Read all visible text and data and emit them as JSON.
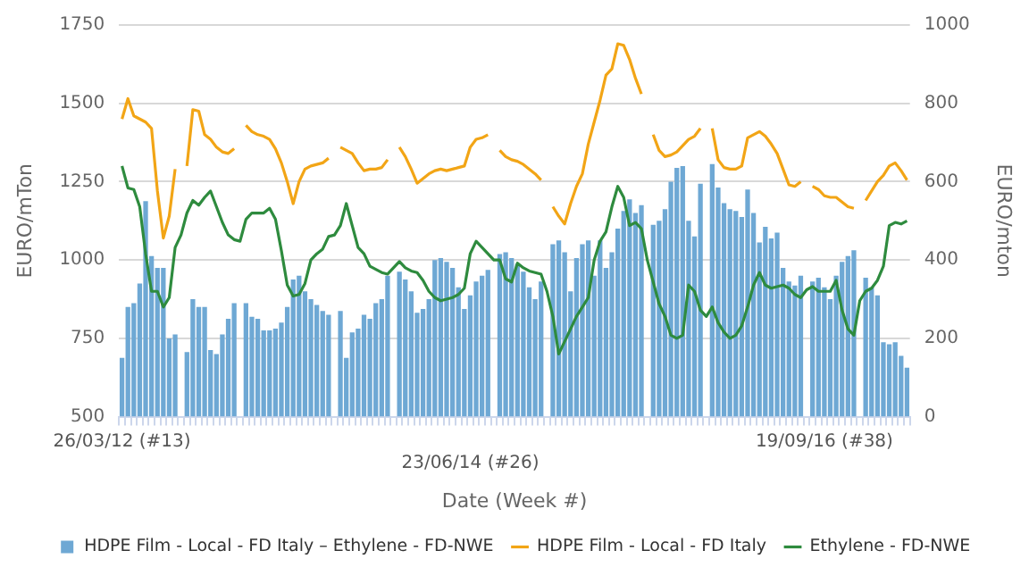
{
  "chart_data": {
    "type": "bar",
    "xlabel": "Date (Week #)",
    "ylabel": "EURO/mTon",
    "y2label": "EURO/mton",
    "categories": [
      "26/03/12 (#13)",
      null,
      null,
      null,
      null,
      null,
      null,
      null,
      null,
      null,
      null,
      null,
      null,
      null,
      null,
      null,
      null,
      null,
      null,
      null,
      null,
      null,
      null,
      null,
      null,
      null,
      null,
      null,
      null,
      null,
      null,
      null,
      null,
      null,
      null,
      null,
      null,
      null,
      null,
      null,
      null,
      null,
      null,
      null,
      null,
      null,
      null,
      null,
      null,
      null,
      null,
      null,
      null,
      null,
      null,
      null,
      null,
      null,
      null,
      "23/06/14 (#26)",
      null,
      null,
      null,
      null,
      null,
      null,
      null,
      null,
      null,
      null,
      null,
      null,
      null,
      null,
      null,
      null,
      null,
      null,
      null,
      null,
      null,
      null,
      null,
      null,
      null,
      null,
      null,
      null,
      null,
      null,
      null,
      null,
      null,
      null,
      null,
      null,
      null,
      null,
      null,
      null,
      null,
      null,
      null,
      null,
      null,
      null,
      null,
      null,
      null,
      null,
      null,
      null,
      null,
      null,
      null,
      null,
      null,
      null,
      null,
      "19/09/16 (#38)",
      null,
      null,
      null,
      null,
      null,
      null,
      null,
      null,
      null,
      null,
      null,
      null,
      null,
      null
    ],
    "series": [
      {
        "name": "HDPE Film - Local - FD Italy – Ethylene - FD-NWE",
        "axis": "y2",
        "color": "#6ea8d4",
        "values": [
          150,
          280,
          290,
          340,
          550,
          410,
          380,
          380,
          200,
          210,
          null,
          165,
          300,
          280,
          280,
          170,
          160,
          210,
          250,
          290,
          null,
          290,
          255,
          250,
          220,
          220,
          225,
          240,
          280,
          350,
          360,
          320,
          300,
          285,
          270,
          260,
          null,
          270,
          150,
          215,
          225,
          260,
          250,
          290,
          300,
          360,
          null,
          370,
          350,
          320,
          265,
          275,
          300,
          400,
          405,
          395,
          380,
          330,
          275,
          310,
          345,
          360,
          375,
          null,
          415,
          420,
          405,
          390,
          370,
          330,
          300,
          345,
          null,
          440,
          450,
          420,
          320,
          405,
          440,
          450,
          360,
          450,
          380,
          420,
          480,
          525,
          555,
          520,
          540,
          null,
          490,
          500,
          530,
          600,
          635,
          640,
          500,
          460,
          595,
          null,
          645,
          585,
          545,
          530,
          525,
          510,
          580,
          520,
          445,
          485,
          455,
          470,
          380,
          345,
          335,
          360,
          null,
          345,
          355,
          330,
          300,
          360,
          395,
          410,
          425,
          null,
          355,
          330,
          310,
          190,
          185,
          190,
          155,
          125
        ]
      },
      {
        "name": "HDPE Film - Local - FD Italy",
        "type": "line",
        "color": "#f2a516",
        "values": [
          1450,
          1515,
          1460,
          1450,
          1440,
          1420,
          1220,
          1070,
          1140,
          1290,
          null,
          1300,
          1480,
          1475,
          1400,
          1385,
          1360,
          1345,
          1340,
          1355,
          null,
          1430,
          1410,
          1400,
          1395,
          1385,
          1355,
          1310,
          1250,
          1180,
          1250,
          1290,
          1300,
          1305,
          1310,
          1325,
          null,
          1360,
          1350,
          1340,
          1310,
          1285,
          1290,
          1290,
          1295,
          1320,
          null,
          1360,
          1330,
          1290,
          1245,
          1260,
          1275,
          1285,
          1290,
          1285,
          1290,
          1295,
          1300,
          1360,
          1385,
          1390,
          1400,
          null,
          1350,
          1330,
          1320,
          1315,
          1305,
          1290,
          1275,
          1255,
          null,
          1170,
          1140,
          1115,
          1180,
          1235,
          1275,
          1370,
          1440,
          1510,
          1590,
          1610,
          1690,
          1685,
          1640,
          1580,
          1530,
          null,
          1400,
          1350,
          1330,
          1335,
          1345,
          1365,
          1385,
          1395,
          1420,
          null,
          1420,
          1320,
          1295,
          1290,
          1290,
          1300,
          1390,
          1400,
          1410,
          1395,
          1370,
          1340,
          1290,
          1240,
          1235,
          1250,
          null,
          1235,
          1225,
          1205,
          1200,
          1200,
          1185,
          1170,
          1165,
          null,
          1190,
          1220,
          1250,
          1270,
          1300,
          1310,
          1285,
          1255
        ]
      },
      {
        "name": "Ethylene - FD-NWE",
        "type": "line",
        "color": "#2e8b3e",
        "values": [
          1300,
          1230,
          1225,
          1170,
          1020,
          900,
          900,
          850,
          880,
          1040,
          1080,
          1150,
          1190,
          1175,
          1200,
          1220,
          1170,
          1120,
          1080,
          1065,
          1060,
          1130,
          1150,
          1150,
          1150,
          1165,
          1130,
          1030,
          920,
          885,
          890,
          925,
          1000,
          1020,
          1035,
          1075,
          1080,
          1110,
          1180,
          1110,
          1040,
          1020,
          980,
          970,
          960,
          955,
          975,
          995,
          975,
          965,
          960,
          935,
          900,
          880,
          870,
          875,
          880,
          890,
          910,
          1020,
          1060,
          1040,
          1020,
          1000,
          1000,
          940,
          930,
          990,
          975,
          965,
          960,
          955,
          900,
          820,
          700,
          740,
          780,
          820,
          850,
          880,
          1000,
          1060,
          1090,
          1170,
          1235,
          1200,
          1110,
          1120,
          1100,
          1000,
          930,
          860,
          820,
          760,
          750,
          760,
          920,
          900,
          840,
          820,
          850,
          800,
          770,
          750,
          760,
          790,
          850,
          920,
          960,
          920,
          910,
          915,
          920,
          910,
          890,
          880,
          905,
          915,
          900,
          900,
          900,
          935,
          840,
          780,
          760,
          870,
          900,
          910,
          935,
          980,
          1110,
          1120,
          1115,
          1125
        ]
      }
    ],
    "ylim": [
      500,
      1750
    ],
    "yticks": [
      500,
      750,
      1000,
      1250,
      1500,
      1750
    ],
    "y2lim": [
      0,
      1000
    ],
    "y2ticks": [
      0,
      200,
      400,
      600,
      800,
      1000
    ],
    "grid": "y",
    "legend": "bottom"
  }
}
